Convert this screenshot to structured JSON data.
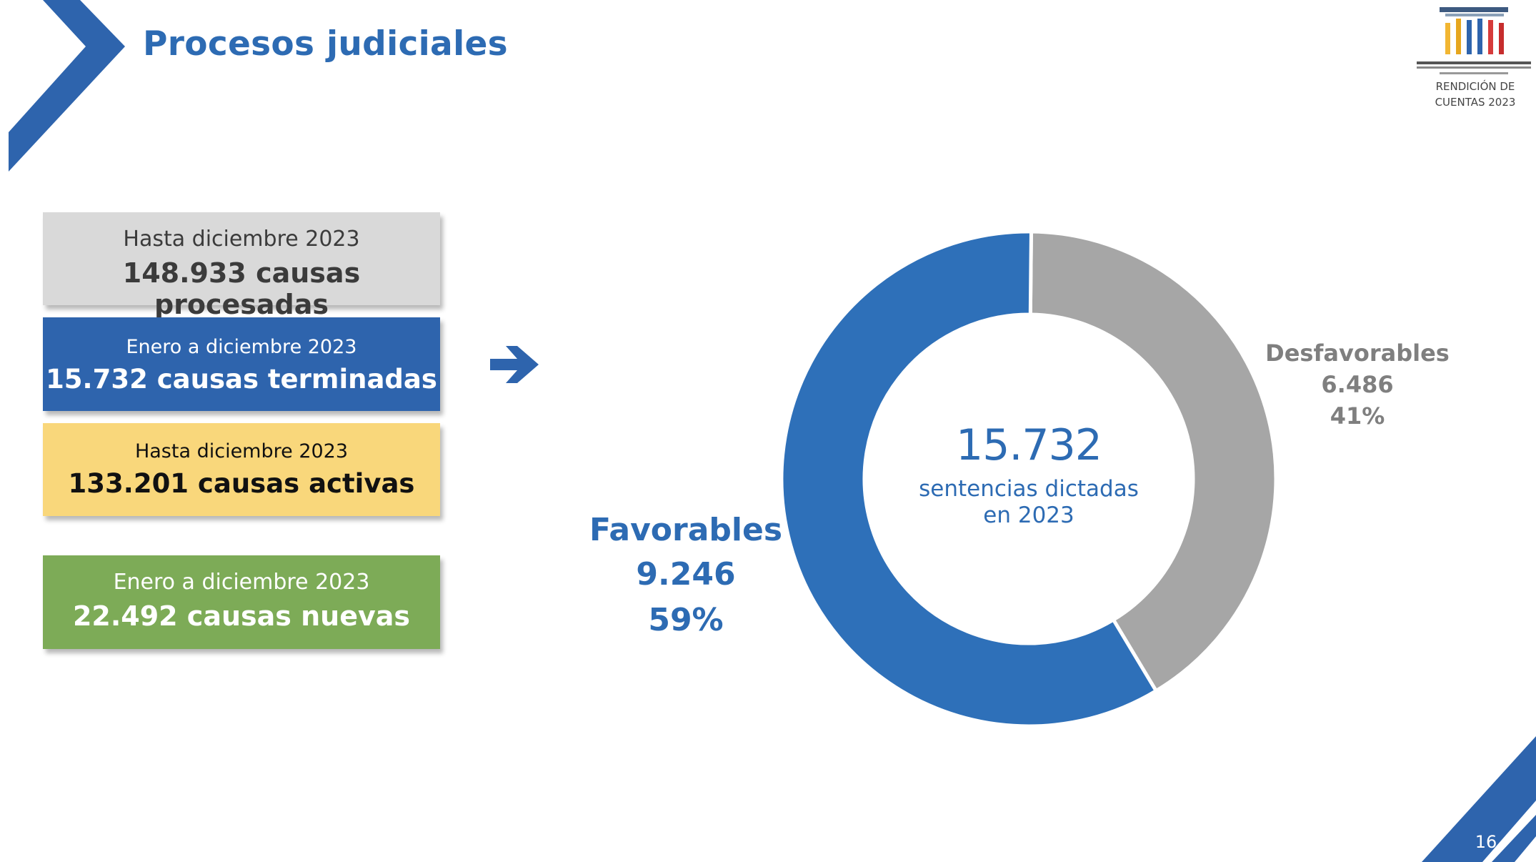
{
  "header": {
    "title": "Procesos judiciales",
    "logo_caption_line1": "RENDICIÓN DE",
    "logo_caption_line2": "CUENTAS 2023"
  },
  "cards": [
    {
      "sub": "Hasta diciembre 2023",
      "main": "148.933 causas procesadas",
      "color": "#d9d9d9"
    },
    {
      "sub": "Enero a diciembre  2023",
      "main": "15.732 causas terminadas",
      "color": "#2e64ad"
    },
    {
      "sub": "Hasta diciembre  2023",
      "main": "133.201 causas activas",
      "color": "#f9d77b"
    },
    {
      "sub": "Enero a diciembre 2023",
      "main": "22.492 causas nuevas",
      "color": "#7dab57"
    }
  ],
  "icons": {
    "arrow": "arrow-right-icon",
    "logo": "institution-logo-icon"
  },
  "colors": {
    "accent": "#2d6bb3",
    "favorable": "#2e70b9",
    "desfavorable": "#a6a6a6"
  },
  "chart_data": {
    "type": "pie",
    "donut": true,
    "center_total": "15.732",
    "center_label_line1": "sentencias dictadas",
    "center_label_line2": "en 2023",
    "slices": [
      {
        "name": "Desfavorables",
        "value": 6486,
        "value_label": "6.486",
        "percent_label": "41%",
        "color": "#a6a6a6"
      },
      {
        "name": "Favorables",
        "value": 9246,
        "value_label": "9.246",
        "percent_label": "59%",
        "color": "#2e70b9"
      }
    ]
  },
  "footer": {
    "page_number": "16"
  }
}
